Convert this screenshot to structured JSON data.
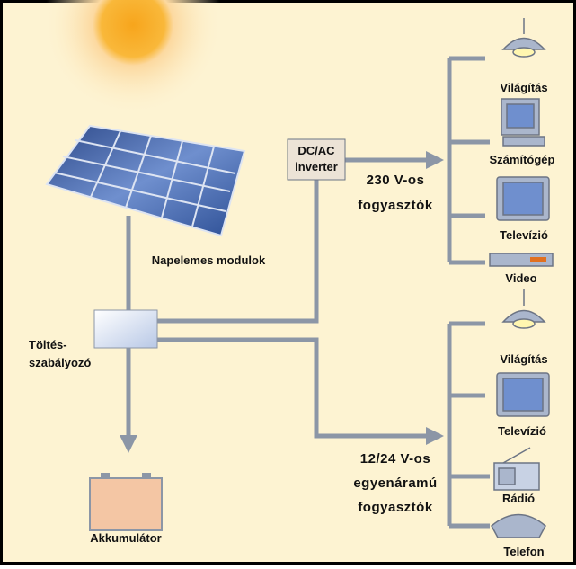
{
  "panel_label": "Napelemes modulok",
  "controller_label": [
    "Töltés-",
    "szabályozó"
  ],
  "battery_label": "Akkumulátor",
  "inverter_label": [
    "DC/AC",
    "inverter"
  ],
  "groups": [
    {
      "label": [
        "230 V-os",
        "fogyasztók"
      ],
      "devices": [
        "Világítás",
        "Számítógép",
        "Televízió",
        "Video"
      ]
    },
    {
      "label": [
        "12/24 V-os",
        "egyenáramú",
        "fogyasztók"
      ],
      "devices": [
        "Világítás",
        "Televízió",
        "Rádió",
        "Telefon"
      ]
    }
  ]
}
